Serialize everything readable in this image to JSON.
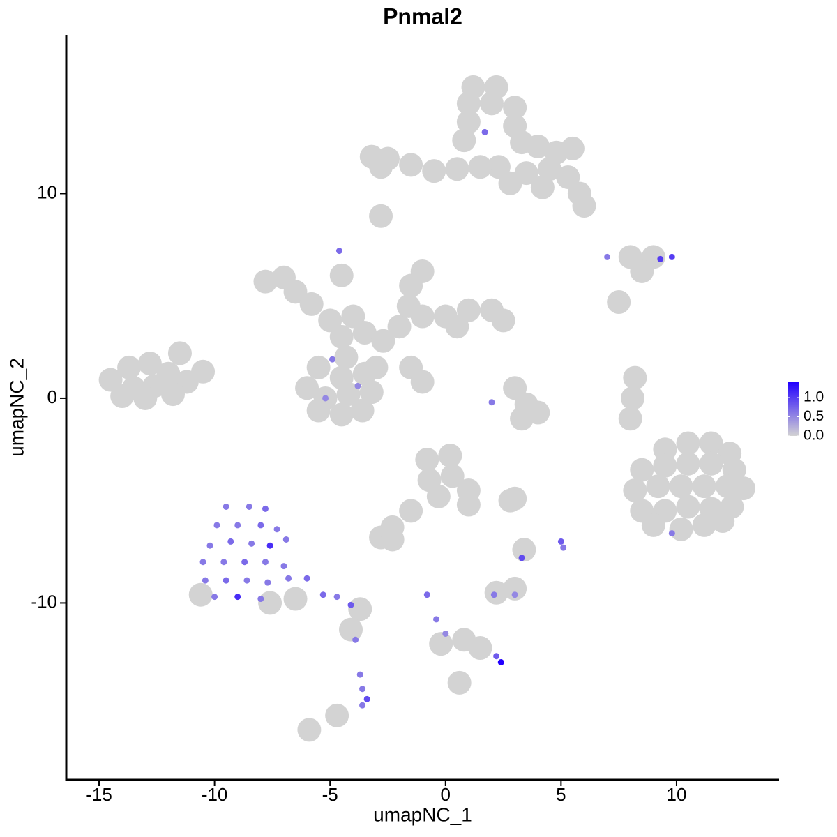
{
  "chart_data": {
    "type": "scatter",
    "title": "Pnmal2",
    "x_label": "umapNC_1",
    "y_label": "umapNC_2",
    "xlim": [
      -16.42,
      14.44
    ],
    "ylim": [
      -18.64,
      17.75
    ],
    "xticks": [
      -15,
      -10,
      -5,
      0,
      5,
      10
    ],
    "yticks": [
      -10,
      0,
      10
    ],
    "colorbar": {
      "lim": [
        0,
        1.4
      ],
      "ticks": [
        {
          "value": 0,
          "label": "0.0"
        },
        {
          "value": 0.5,
          "label": "0.5"
        },
        {
          "value": 1,
          "label": "1.0"
        }
      ],
      "low_color": "#d3d3d3",
      "high_color": "#2200ff"
    },
    "x": [
      1.2,
      2.2,
      1.0,
      2.0,
      3.0,
      1.0,
      3.0,
      0.8,
      3.3,
      4.0,
      4.8,
      5.5,
      4.5,
      5.3,
      5.8,
      6.0,
      4.2,
      3.5,
      2.3,
      1.5,
      0.5,
      -0.5,
      -1.5,
      -2.5,
      -3.2,
      -2.8,
      2.8,
      -2.8,
      1.7,
      -7.8,
      -7.0,
      -6.5,
      -5.8,
      -5.0,
      -4.5,
      -4.3,
      -4.6,
      -4.5,
      -4.0,
      -3.5,
      -2.7,
      -2.0,
      -1.5,
      -1.0,
      -1.6,
      -1.0,
      0,
      1.0,
      2.0,
      2.5,
      0.5,
      -5.5,
      -4.5,
      -3.5,
      -6.0,
      -5.2,
      -4.2,
      -3.2,
      -5.5,
      -4.5,
      -3.6,
      -3.0,
      -1.5,
      -1.0,
      -4.9,
      -3.8,
      -5.2,
      -14.5,
      -13.7,
      -13.5,
      -12.8,
      -12.6,
      -12.0,
      -11.5,
      -11.2,
      -11.8,
      -13.0,
      -10.5,
      -14.0,
      9.5,
      10.5,
      11.5,
      12.3,
      8.5,
      9.5,
      10.5,
      11.5,
      12.5,
      8.2,
      9.2,
      10.2,
      11.2,
      12.2,
      12.9,
      8.5,
      9.5,
      10.5,
      11.5,
      12.4,
      9.0,
      10.2,
      11.2,
      12.0,
      9.8,
      -0.8,
      0.2,
      -0.7,
      0.3,
      1.0,
      1.0,
      -0.3,
      -1.5,
      -2.3,
      -2.8,
      -2.3,
      3.0,
      2.0,
      3.3,
      3.5,
      3.0,
      4.0,
      7.0,
      8.0,
      9.0,
      9.3,
      9.8,
      8.5,
      7.5,
      8.2,
      8.1,
      8.0,
      2.2,
      3.0,
      2.1,
      3.0,
      3.3,
      5.0,
      5.1,
      -0.8,
      -0.4,
      0,
      -0.2,
      0.8,
      1.5,
      2.2,
      2.4,
      0.6,
      -5.9,
      -4.7,
      3.4,
      2.8,
      -9.5,
      -8.5,
      -7.8,
      -9.9,
      -9.0,
      -8.0,
      -7.3,
      -10.2,
      -9.3,
      -8.4,
      -7.6,
      -6.9,
      -10.5,
      -9.6,
      -8.7,
      -7.8,
      -7.0,
      -10.4,
      -9.5,
      -8.6,
      -7.7,
      -6.8,
      -6.0,
      -10.0,
      -9.0,
      -8.0,
      -5.3,
      -4.7,
      -4.1,
      -3.7,
      -10.6,
      -7.6,
      -6.5,
      -4.1,
      -3.9,
      -3.7,
      -3.6,
      -3.4,
      -3.6
    ],
    "values": [
      15.2,
      15.2,
      14.4,
      14.4,
      14.2,
      13.5,
      13.3,
      12.6,
      12.5,
      12.3,
      12.0,
      12.2,
      11.2,
      10.8,
      10.0,
      9.4,
      10.3,
      11.0,
      11.3,
      11.3,
      11.2,
      11.1,
      11.4,
      11.7,
      11.8,
      11.3,
      10.5,
      8.9,
      13.0,
      5.7,
      5.9,
      5.2,
      4.6,
      3.8,
      3.0,
      2.0,
      7.2,
      6.0,
      4.0,
      3.2,
      2.8,
      3.5,
      5.5,
      6.2,
      4.5,
      4.0,
      4.0,
      4.3,
      4.3,
      3.8,
      3.5,
      1.5,
      1.0,
      1.2,
      0.5,
      0,
      0.2,
      0.3,
      -0.6,
      -0.8,
      -0.6,
      1.5,
      1.5,
      0.8,
      1.9,
      0.6,
      0,
      0.9,
      1.5,
      0.5,
      1.7,
      0.6,
      1.2,
      2.2,
      0.8,
      0.2,
      0,
      1.3,
      0.1,
      -2.5,
      -2.2,
      -2.2,
      -2.7,
      -3.5,
      -3.3,
      -3.2,
      -3.2,
      -3.5,
      -4.5,
      -4.3,
      -4.3,
      -4.3,
      -4.3,
      -4.4,
      -5.5,
      -5.5,
      -5.3,
      -5.4,
      -5.3,
      -6.2,
      -6.4,
      -6.2,
      -6.0,
      -6.6,
      -3.0,
      -2.8,
      -4.0,
      -3.8,
      -4.5,
      -5.2,
      -4.8,
      -5.5,
      -6.3,
      -6.8,
      -6.9,
      -4.9,
      -0.2,
      -1.0,
      -0.3,
      0.5,
      -0.7,
      6.9,
      6.9,
      6.9,
      6.8,
      6.9,
      6.2,
      4.7,
      1.0,
      0,
      -1.0,
      -9.5,
      -9.3,
      -9.6,
      -9.6,
      -7.8,
      -7.0,
      -7.3,
      -9.6,
      -10.8,
      -11.5,
      -12.0,
      -11.8,
      -12.2,
      -12.6,
      -12.9,
      -13.9,
      -16.2,
      -15.5,
      -7.4,
      -5.0,
      -5.3,
      -5.3,
      -5.4,
      -6.2,
      -6.2,
      -6.2,
      -6.4,
      -7.2,
      -7.0,
      -7.1,
      -7.2,
      -6.9,
      -8.0,
      -8.0,
      -8.0,
      -8.0,
      -8.2,
      -8.9,
      -8.9,
      -8.9,
      -9.0,
      -8.8,
      -8.8,
      -9.7,
      -9.7,
      -9.8,
      -9.6,
      -9.7,
      -10.1,
      -10.3,
      -9.6,
      -10.0,
      -9.8,
      -11.3,
      -11.8,
      -13.5,
      -14.2,
      -14.7,
      -15.0
    ],
    "expression": [
      0,
      0,
      0,
      0,
      0,
      0,
      0,
      0,
      0,
      0,
      0,
      0,
      0,
      0,
      0,
      0,
      0,
      0,
      0,
      0,
      0,
      0,
      0,
      0,
      0,
      0,
      0,
      0,
      0.7,
      0,
      0,
      0,
      0,
      0,
      0,
      0,
      0.7,
      0,
      0,
      0,
      0,
      0,
      0,
      0,
      0,
      0,
      0,
      0,
      0,
      0,
      0,
      0,
      0,
      0,
      0,
      0,
      0,
      0,
      0,
      0,
      0,
      0,
      0,
      0,
      0.6,
      0.5,
      0.5,
      0,
      0,
      0,
      0,
      0,
      0,
      0,
      0,
      0,
      0,
      0,
      0,
      0,
      0,
      0,
      0,
      0,
      0,
      0,
      0,
      0,
      0,
      0,
      0,
      0,
      0,
      0,
      0,
      0,
      0,
      0,
      0,
      0,
      0,
      0,
      0,
      0.6,
      0,
      0,
      0,
      0,
      0,
      0,
      0,
      0,
      0,
      0,
      0,
      0,
      0.6,
      0,
      0,
      0,
      0,
      0.6,
      0,
      0,
      1.0,
      1.0,
      0,
      0,
      0,
      0,
      0,
      0,
      0,
      0.6,
      0.5,
      0.9,
      0.8,
      0.6,
      0.7,
      0.6,
      0.5,
      0,
      0,
      0,
      0.8,
      1.4,
      0,
      0,
      0,
      0,
      0,
      0.6,
      0.6,
      0.7,
      0.6,
      0.6,
      0.7,
      0.6,
      0.6,
      0.7,
      0.6,
      1.1,
      0.6,
      0.6,
      0.6,
      0.7,
      0.6,
      0.6,
      0.6,
      0.7,
      0.6,
      0.6,
      0.6,
      0.7,
      0.6,
      1.1,
      0.6,
      0.7,
      0.6,
      0.8,
      0,
      0,
      0,
      0,
      0,
      0.6,
      0.6,
      0.6,
      0.9,
      0.6
    ]
  }
}
